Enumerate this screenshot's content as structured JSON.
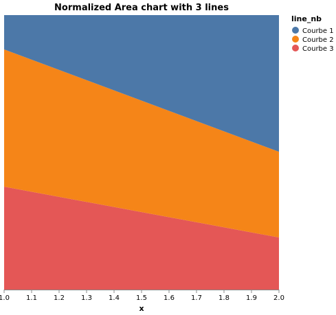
{
  "chart_data": {
    "type": "area",
    "stacking": "normalize",
    "title": "Normalized Area chart with 3 lines",
    "xlabel": "x",
    "ylabel": "",
    "x": [
      1.0,
      2.0
    ],
    "xlim": [
      1.0,
      2.0
    ],
    "ylim": [
      0,
      1
    ],
    "x_ticks": [
      "1.0",
      "1.1",
      "1.2",
      "1.3",
      "1.4",
      "1.5",
      "1.6",
      "1.7",
      "1.8",
      "1.9",
      "2.0"
    ],
    "grid": false,
    "legend_title": "line_nb",
    "legend_position": "top-right",
    "series": [
      {
        "name": "Courbe 1",
        "color": "#4c78a8",
        "values": [
          0.125,
          0.59
        ]
      },
      {
        "name": "Courbe 2",
        "color": "#f58518",
        "values": [
          0.5,
          0.37
        ]
      },
      {
        "name": "Courbe 3",
        "color": "#e45756",
        "values": [
          0.375,
          0.225
        ]
      }
    ]
  }
}
